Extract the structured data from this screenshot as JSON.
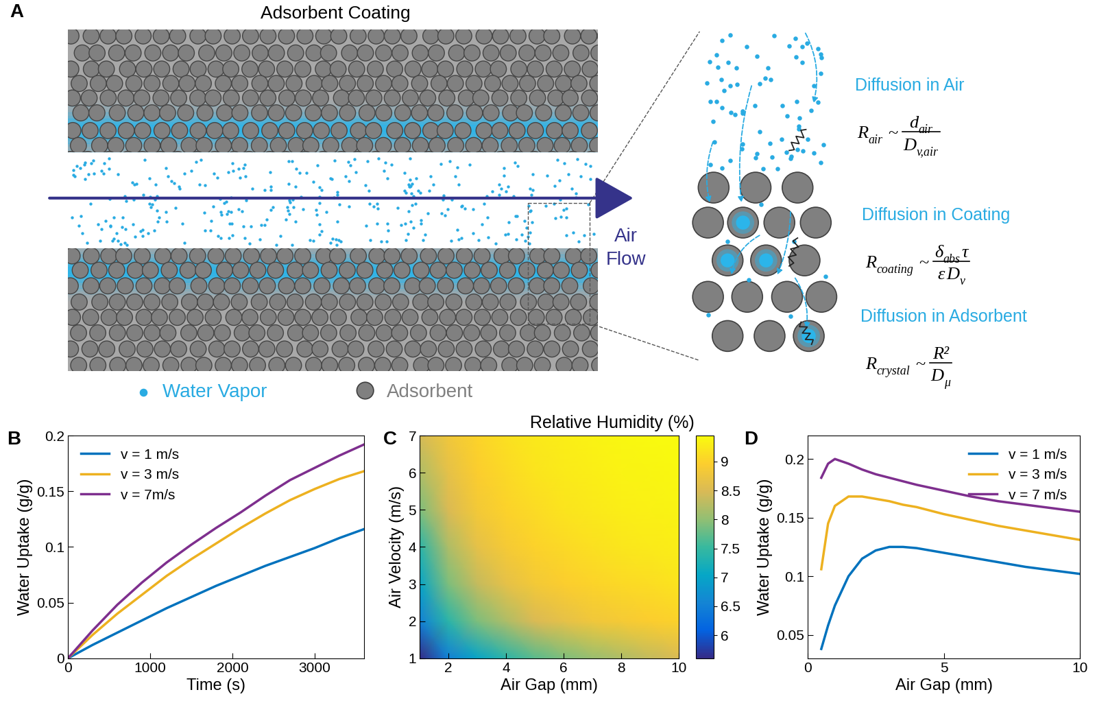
{
  "panel_A": {
    "panel_label": "A",
    "title": "Adsorbent Coating",
    "flow_label": "Air Flow",
    "key_items": [
      {
        "label": "Water Vapor"
      },
      {
        "label": "Adsorbent"
      }
    ],
    "mechanisms": [
      {
        "label": "Diffusion in Air",
        "formula": {
          "lhs": [
            "R",
            "air"
          ],
          "relation": "~",
          "numerator": [
            [
              "d",
              "air"
            ]
          ],
          "denominator": [
            [
              "D",
              "v,air"
            ]
          ]
        }
      },
      {
        "label": "Diffusion in Coating",
        "formula": {
          "lhs": [
            "R",
            "coating"
          ],
          "relation": "~",
          "numerator": [
            [
              "δ",
              "abs"
            ],
            "τ"
          ],
          "denominator": [
            "ε",
            [
              "D",
              "v"
            ]
          ]
        }
      },
      {
        "label": "Diffusion in Adsorbent",
        "formula": {
          "lhs": [
            "R",
            "crystal"
          ],
          "relation": "~",
          "numerator": [
            "R²"
          ],
          "denominator": [
            [
              "D",
              "μ"
            ]
          ]
        }
      }
    ]
  },
  "chart_data": [
    {
      "panel_label": "B",
      "type": "line",
      "x_label": "Time (s)",
      "y_label": "Water Uptake (g/g)",
      "x": [
        0,
        300,
        600,
        900,
        1200,
        1500,
        1800,
        2100,
        2400,
        2700,
        3000,
        3300,
        3600
      ],
      "series": [
        {
          "name": "v = 1 m/s",
          "color": "#0072BD",
          "values": [
            0,
            0.012,
            0.023,
            0.034,
            0.045,
            0.055,
            0.065,
            0.074,
            0.083,
            0.091,
            0.099,
            0.108,
            0.116
          ]
        },
        {
          "name": "v = 3 m/s",
          "color": "#EDB120",
          "values": [
            0,
            0.021,
            0.04,
            0.057,
            0.074,
            0.089,
            0.103,
            0.117,
            0.13,
            0.142,
            0.152,
            0.161,
            0.168
          ]
        },
        {
          "name": "v = 7m/s",
          "color": "#7E2F8E",
          "values": [
            0,
            0.025,
            0.048,
            0.068,
            0.086,
            0.102,
            0.117,
            0.131,
            0.146,
            0.16,
            0.171,
            0.182,
            0.192
          ]
        }
      ],
      "xlim": [
        0,
        3600
      ],
      "ylim": [
        0,
        0.2
      ],
      "xticks": [
        0,
        1000,
        2000,
        3000
      ],
      "yticks": [
        0,
        0.05,
        0.1,
        0.15,
        0.2
      ],
      "legend": "upper left"
    },
    {
      "panel_label": "C",
      "type": "heatmap",
      "title": "Relative Humidity (%)",
      "x_label": "Air Gap (mm)",
      "y_label": "Air Velocity (m/s)",
      "x": [
        1,
        2,
        3,
        4,
        5,
        6,
        7,
        8,
        9,
        10
      ],
      "y": [
        1,
        2,
        3,
        4,
        5,
        6,
        7
      ],
      "cells": [
        [
          5.6,
          6.5,
          7.0,
          7.4,
          7.7,
          7.9,
          8.05,
          8.2,
          8.35,
          8.5
        ],
        [
          6.5,
          7.4,
          7.9,
          8.2,
          8.5,
          8.65,
          8.8,
          8.87,
          8.94,
          9.0
        ],
        [
          7.0,
          7.9,
          8.35,
          8.65,
          8.84,
          8.94,
          9.02,
          9.08,
          9.13,
          9.2
        ],
        [
          7.4,
          8.2,
          8.65,
          8.87,
          9.0,
          9.08,
          9.15,
          9.22,
          9.26,
          9.3
        ],
        [
          7.9,
          8.5,
          8.84,
          9.0,
          9.1,
          9.2,
          9.25,
          9.3,
          9.33,
          9.36
        ],
        [
          8.2,
          8.65,
          8.94,
          9.08,
          9.2,
          9.26,
          9.31,
          9.35,
          9.38,
          9.41
        ],
        [
          8.45,
          8.8,
          9.02,
          9.15,
          9.25,
          9.31,
          9.35,
          9.39,
          9.42,
          9.45
        ]
      ],
      "xlim": [
        1,
        10
      ],
      "ylim": [
        1,
        7
      ],
      "xticks": [
        2,
        4,
        6,
        8,
        10
      ],
      "yticks": [
        1,
        2,
        3,
        4,
        5,
        6,
        7
      ],
      "colorbar_range": [
        5.6,
        9.45
      ],
      "colorbar_ticks": [
        6,
        6.5,
        7,
        7.5,
        8,
        8.5,
        9
      ]
    },
    {
      "panel_label": "D",
      "type": "line",
      "x_label": "Air Gap (mm)",
      "y_label": "Water Uptake (g/g)",
      "x": [
        0.5,
        0.75,
        1,
        1.5,
        2,
        2.5,
        3,
        3.5,
        4,
        5,
        6,
        7,
        8,
        9,
        10
      ],
      "series": [
        {
          "name": "v = 1 m/s",
          "color": "#0072BD",
          "values": [
            0.038,
            0.058,
            0.075,
            0.1,
            0.115,
            0.122,
            0.125,
            0.125,
            0.124,
            0.12,
            0.116,
            0.112,
            0.108,
            0.105,
            0.102
          ]
        },
        {
          "name": "v = 3 m/s",
          "color": "#EDB120",
          "values": [
            0.106,
            0.145,
            0.16,
            0.168,
            0.168,
            0.166,
            0.164,
            0.161,
            0.159,
            0.153,
            0.148,
            0.143,
            0.139,
            0.135,
            0.131
          ]
        },
        {
          "name": "v = 7 m/s",
          "color": "#7E2F8E",
          "values": [
            0.184,
            0.196,
            0.2,
            0.196,
            0.191,
            0.187,
            0.184,
            0.181,
            0.178,
            0.173,
            0.168,
            0.164,
            0.161,
            0.158,
            0.155
          ]
        }
      ],
      "xlim": [
        0,
        10
      ],
      "ylim": [
        0.03,
        0.22
      ],
      "xticks": [
        0,
        5,
        10
      ],
      "yticks": [
        0.05,
        0.1,
        0.15,
        0.2
      ],
      "legend": "upper right"
    }
  ]
}
